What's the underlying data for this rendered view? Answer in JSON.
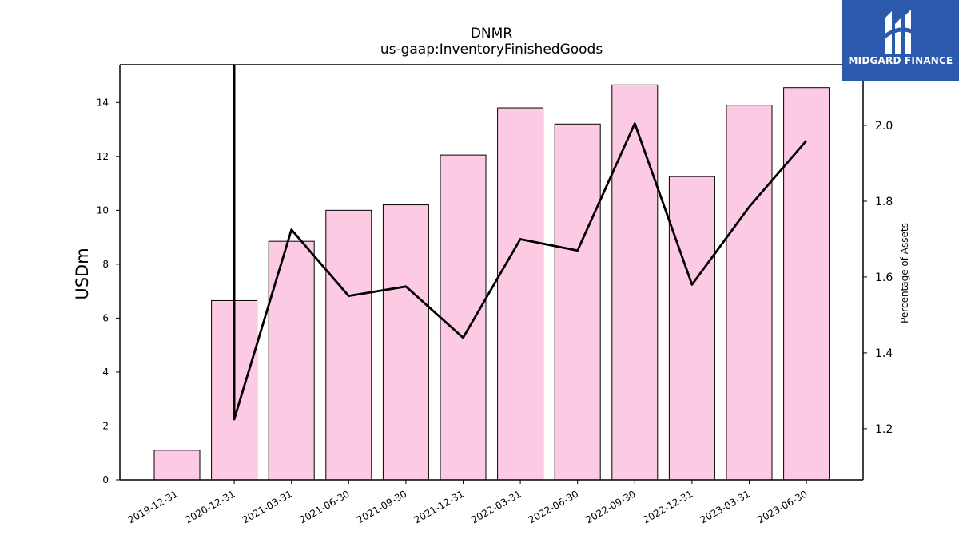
{
  "chart_data": {
    "type": "bar",
    "title": "DNMR",
    "subtitle": "us-gaap:InventoryFinishedGoods",
    "categories": [
      "2019-12-31",
      "2020-12-31",
      "2021-03-31",
      "2021-06-30",
      "2021-09-30",
      "2021-12-31",
      "2022-03-31",
      "2022-06-30",
      "2022-09-30",
      "2022-12-31",
      "2023-03-31",
      "2023-06-30"
    ],
    "series": [
      {
        "axis": "left",
        "type": "bar",
        "values": [
          1.1,
          6.65,
          8.85,
          10.0,
          10.2,
          12.05,
          13.8,
          13.2,
          14.65,
          11.25,
          13.9,
          14.55
        ],
        "color": "#fccbe3"
      },
      {
        "axis": "right",
        "type": "line",
        "values": [
          null,
          1.225,
          1.725,
          1.55,
          1.575,
          1.44,
          1.7,
          1.67,
          2.005,
          1.58,
          1.785,
          1.96
        ],
        "color": "#000000"
      }
    ],
    "left_axis": {
      "label": "USDm",
      "range": [
        0,
        15.4
      ],
      "ticks": [
        0,
        2,
        4,
        6,
        8,
        10,
        12,
        14
      ]
    },
    "right_axis": {
      "label": "Percentage of Assets",
      "range": [
        1.065,
        2.16
      ],
      "ticks": [
        1.2,
        1.4,
        1.6,
        1.8,
        2.0
      ],
      "tick_labels": [
        "1.2",
        "1.4",
        "1.6",
        "1.8",
        "2.0"
      ]
    },
    "grid": false,
    "legend": "none"
  },
  "logo": {
    "text": "MIDGARD FINANCE",
    "color": "#2b5aad"
  }
}
